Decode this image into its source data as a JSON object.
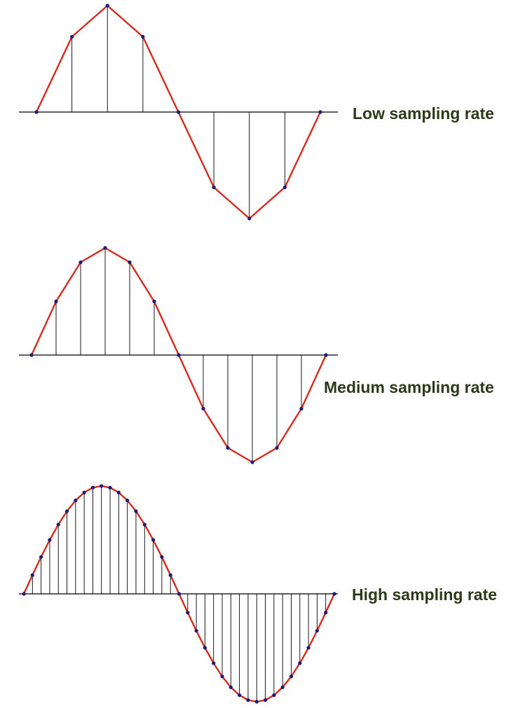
{
  "colors": {
    "waveform": "#d42b1e",
    "sample_stem": "#000000",
    "axis": "#000000",
    "sample_point": "#1a1a7a",
    "label_text": "#2b3a1a"
  },
  "panels": [
    {
      "id": "low",
      "label": "Low sampling rate",
      "samples_per_cycle": 8
    },
    {
      "id": "medium",
      "label": "Medium sampling rate",
      "samples_per_cycle": 12
    },
    {
      "id": "high",
      "label": "High sampling rate",
      "samples_per_cycle": 36
    }
  ]
}
